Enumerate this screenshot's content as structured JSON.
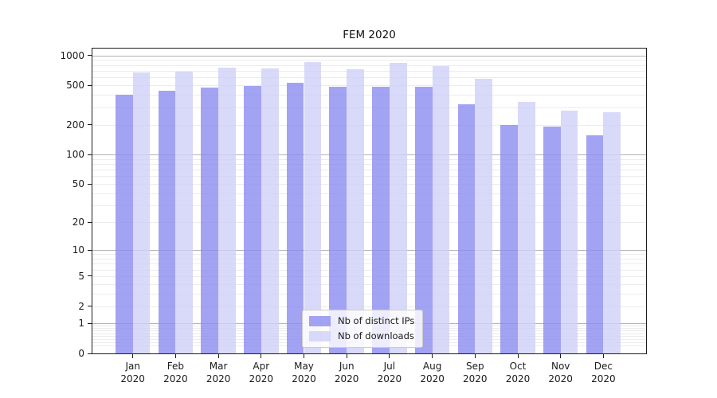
{
  "chart_data": {
    "type": "bar",
    "title": "FEM 2020",
    "xlabel": "",
    "ylabel": "",
    "yscale": "log1p",
    "yticks": [
      0,
      1,
      2,
      5,
      10,
      20,
      50,
      100,
      200,
      500,
      1000
    ],
    "ylim": [
      0,
      1175
    ],
    "grid": {
      "orientation": "horizontal",
      "major_color": "#b3b3b3",
      "minor_color": "#ececec",
      "major_values": [
        1,
        10,
        100,
        1000
      ]
    },
    "categories": [
      {
        "month": "Jan",
        "year": "2020"
      },
      {
        "month": "Feb",
        "year": "2020"
      },
      {
        "month": "Mar",
        "year": "2020"
      },
      {
        "month": "Apr",
        "year": "2020"
      },
      {
        "month": "May",
        "year": "2020"
      },
      {
        "month": "Jun",
        "year": "2020"
      },
      {
        "month": "Jul",
        "year": "2020"
      },
      {
        "month": "Aug",
        "year": "2020"
      },
      {
        "month": "Sep",
        "year": "2020"
      },
      {
        "month": "Oct",
        "year": "2020"
      },
      {
        "month": "Nov",
        "year": "2020"
      },
      {
        "month": "Dec",
        "year": "2020"
      }
    ],
    "series": [
      {
        "name": "Nb of distinct IPs",
        "key": "distinct-ips",
        "color": "#8c8cf0",
        "values": [
          400,
          440,
          475,
          490,
          530,
          480,
          480,
          480,
          325,
          200,
          190,
          155
        ]
      },
      {
        "name": "Nb of downloads",
        "key": "downloads",
        "color": "#cfcff8",
        "values": [
          680,
          690,
          755,
          740,
          855,
          725,
          840,
          790,
          580,
          340,
          280,
          270
        ]
      }
    ],
    "legend": {
      "position": "lower-center-inside"
    }
  }
}
